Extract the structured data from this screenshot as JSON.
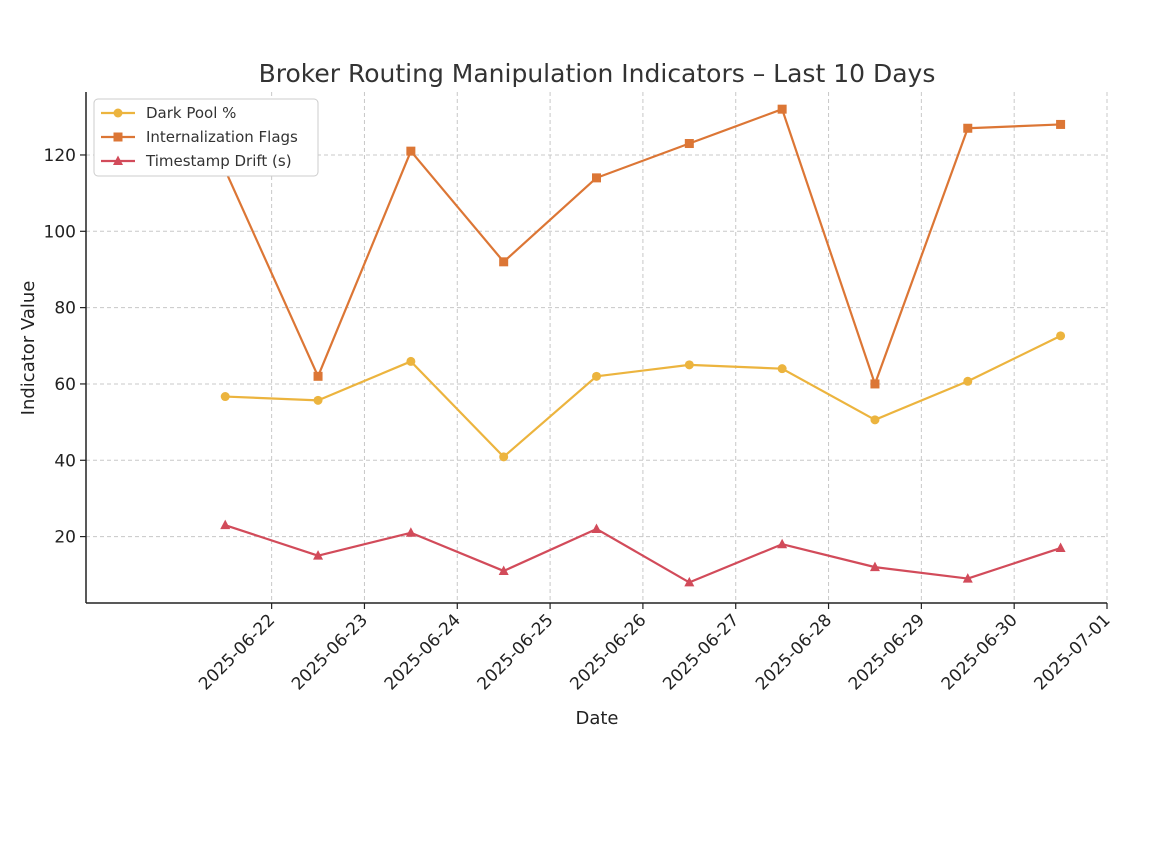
{
  "chart_data": {
    "type": "line",
    "title": "Broker Routing Manipulation Indicators – Last 10 Days",
    "xlabel": "Date",
    "ylabel": "Indicator Value",
    "x": [
      "2025-06-21",
      "2025-06-22",
      "2025-06-23",
      "2025-06-24",
      "2025-06-25",
      "2025-06-26",
      "2025-06-27",
      "2025-06-28",
      "2025-06-29",
      "2025-06-30"
    ],
    "x_tick_labels": [
      "2025-06-22",
      "2025-06-23",
      "2025-06-24",
      "2025-06-25",
      "2025-06-26",
      "2025-06-27",
      "2025-06-28",
      "2025-06-29",
      "2025-06-30",
      "2025-07-01"
    ],
    "y_ticks": [
      20,
      40,
      60,
      80,
      100,
      120
    ],
    "ylim": [
      2.6,
      136.5
    ],
    "xlim": [
      "2025-06-20",
      "2025-07-01"
    ],
    "grid": true,
    "legend": "top-left",
    "series": [
      {
        "name": "Dark Pool %",
        "color": "#ecb43e",
        "marker": "circle",
        "values": [
          56.7,
          55.7,
          65.9,
          40.9,
          62.0,
          65.0,
          64.0,
          50.6,
          60.7,
          72.6
        ]
      },
      {
        "name": "Internalization Flags",
        "color": "#dc7635",
        "marker": "square",
        "values": [
          116,
          62,
          121,
          92,
          114,
          123,
          132,
          60,
          127,
          128
        ]
      },
      {
        "name": "Timestamp Drift (s)",
        "color": "#d24b5a",
        "marker": "triangle",
        "values": [
          23,
          15,
          21,
          11,
          22,
          8,
          18,
          12,
          9,
          17
        ]
      }
    ]
  }
}
